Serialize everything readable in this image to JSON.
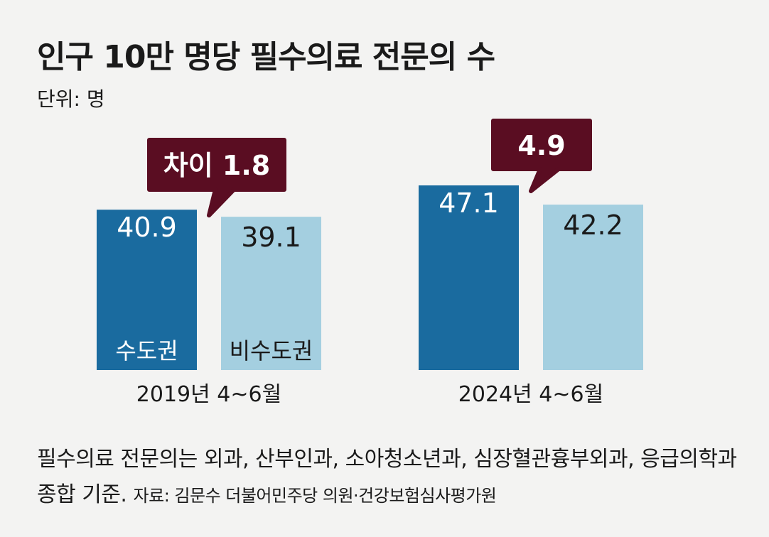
{
  "title": "인구 10만 명당 필수의료 전문의 수",
  "unit": "단위: 명",
  "colors": {
    "capital": "#1a6b9f",
    "non_capital": "#a4cfe0",
    "callout": "#5a0d22",
    "background": "#f3f3f2"
  },
  "chart_data": {
    "type": "bar",
    "categories": [
      "2019년 4~6월",
      "2024년 4~6월"
    ],
    "series": [
      {
        "name": "수도권",
        "values": [
          40.9,
          47.1
        ]
      },
      {
        "name": "비수도권",
        "values": [
          39.1,
          42.2
        ]
      }
    ],
    "callouts": [
      "차이 1.8",
      "4.9"
    ],
    "ylim": [
      0,
      50
    ],
    "grid": false,
    "legend": "series names printed inside the first group's bars"
  },
  "note": {
    "text": "필수의료 전문의는 외과, 산부인과, 소아청소년과, 심장혈관흉부외과, 응급의학과 종합 기준.",
    "source": "자료: 김문수 더불어민주당 의원·건강보험심사평가원"
  }
}
